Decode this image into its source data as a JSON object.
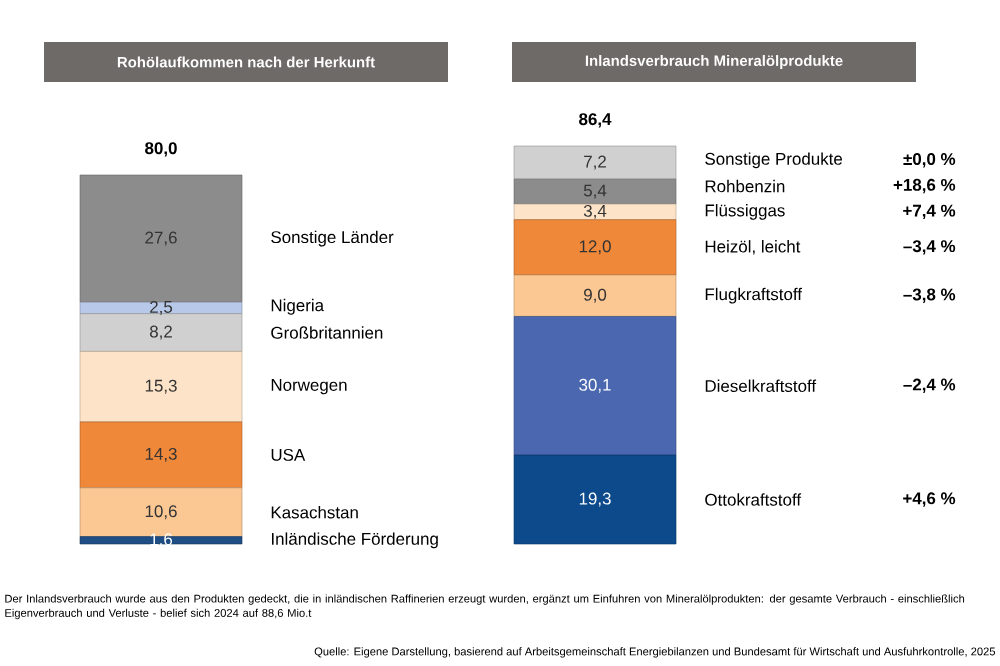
{
  "chart_data": [
    {
      "type": "bar",
      "title": "Rohölaufkommen nach der Herkunft",
      "stacked": true,
      "tick_labels": false,
      "categories": [
        null
      ],
      "totals": [
        "80,0"
      ],
      "series": [
        {
          "name": "Inländische Förderung",
          "color": "#1f4e85",
          "values": [
            1.6
          ],
          "value_labels": [
            "1,6"
          ]
        },
        {
          "name": "Kasachstan",
          "color": "#fbc792",
          "values": [
            10.6
          ],
          "value_labels": [
            "10,6"
          ]
        },
        {
          "name": "USA",
          "color": "#f0883a",
          "values": [
            14.3
          ],
          "value_labels": [
            "14,3"
          ]
        },
        {
          "name": "Norwegen",
          "color": "#fde4c8",
          "values": [
            15.3
          ],
          "value_labels": [
            "15,3"
          ]
        },
        {
          "name": "Großbritannien",
          "color": "#d0d0d0",
          "values": [
            8.2
          ],
          "value_labels": [
            "8,2"
          ]
        },
        {
          "name": "Nigeria",
          "color": "#b8c8e8",
          "values": [
            2.5
          ],
          "value_labels": [
            "2,5"
          ]
        },
        {
          "name": "Sonstige Länder",
          "color": "#8c8c8c",
          "values": [
            27.6
          ],
          "value_labels": [
            "27,6"
          ]
        }
      ],
      "annotations": [
        "Der Inlandsverbrauch wurde aus den Produkten gedeckt, die in inländischen Raffinerien erzeugt wurden, ergänzt um Einfuhren von Mineralölprodukten: der gesamte Verbrauch - einschließlich Eigenverbrauch und Verluste - belief sich 2024 auf 88,6 Mio.t",
        "Quelle: Eigene Darstellung, basierend auf Arbeitsgemeinschaft Energiebilanzen und Bundesamt für Wirtschaft und Ausfuhrkontrolle, 2025"
      ]
    },
    {
      "type": "bar",
      "title": "Inlandsverbrauch Mineralölprodukte",
      "stacked": true,
      "tick_labels": false,
      "categories": [
        null
      ],
      "totals": [
        "86,4"
      ],
      "series": [
        {
          "name": "Ottokraftstoff",
          "color": "#0c4a8c",
          "values": [
            19.3
          ],
          "value_labels": [
            "19,3"
          ]
        },
        {
          "name": "Dieselkraftstoff",
          "color": "#4a67b0",
          "values": [
            30.1
          ],
          "value_labels": [
            "30,1"
          ]
        },
        {
          "name": "Flugkraftstoff",
          "color": "#fbc792",
          "values": [
            9.0
          ],
          "value_labels": [
            "9,0"
          ]
        },
        {
          "name": "Heizöl, leicht",
          "color": "#f0883a",
          "values": [
            12.0
          ],
          "value_labels": [
            "12,0"
          ]
        },
        {
          "name": "Flüssiggas",
          "color": "#fde4c8",
          "values": [
            3.4
          ],
          "value_labels": [
            "3,4"
          ]
        },
        {
          "name": "Rohbenzin",
          "color": "#8c8c8c",
          "values": [
            5.4
          ],
          "value_labels": [
            "5,4"
          ]
        },
        {
          "name": "Sonstige Produkte",
          "color": "#d0d0d0",
          "values": [
            7.2
          ],
          "value_labels": [
            "7,2"
          ]
        }
      ],
      "annotations": [
        "±0,0 %",
        "+18,6 %",
        "+7,4 %",
        "–3,4 %",
        "–3,8 %",
        "–2,4 %",
        "+4,6 %"
      ]
    }
  ]
}
